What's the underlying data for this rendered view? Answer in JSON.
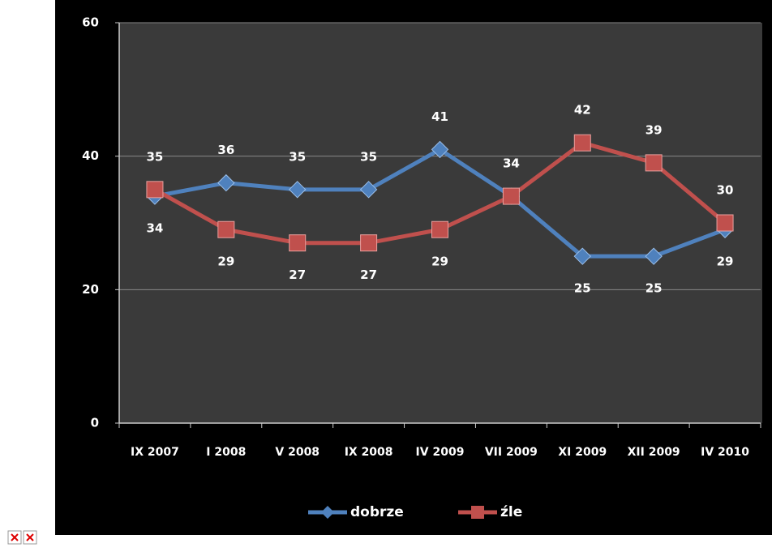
{
  "chart_data": {
    "type": "line",
    "categories": [
      "IX 2007",
      "I 2008",
      "V 2008",
      "IX 2008",
      "IV 2009",
      "VII 2009",
      "XI 2009",
      "XII 2009",
      "IV 2010"
    ],
    "series": [
      {
        "name": "dobrze",
        "color": "#4f81bd",
        "values": [
          34,
          36,
          35,
          35,
          41,
          34,
          25,
          25,
          29
        ]
      },
      {
        "name": "źle",
        "color": "#c0504d",
        "values": [
          35,
          29,
          27,
          27,
          29,
          34,
          42,
          39,
          30
        ]
      }
    ],
    "ylim": [
      0,
      60
    ],
    "yticks": [
      0,
      20,
      40,
      60
    ],
    "grid": true,
    "legend": "bottom"
  }
}
